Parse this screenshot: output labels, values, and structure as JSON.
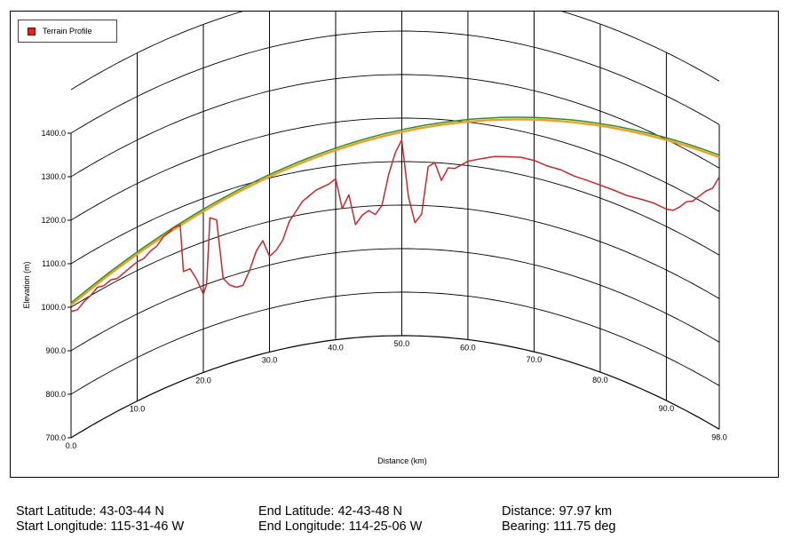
{
  "chart_data": {
    "type": "line",
    "legend": {
      "entries": [
        {
          "label": "Terrain Profile",
          "color": "#e2231a"
        }
      ],
      "placement": "top-left"
    },
    "xlabel": "Distance (km)",
    "ylabel": "Elevation (m)",
    "xlim": [
      0,
      98
    ],
    "ylim": [
      700,
      1400
    ],
    "x_ticks": [
      "0.0",
      "10.0",
      "20.0",
      "30.0",
      "40.0",
      "50.0",
      "60.0",
      "70.0",
      "80.0",
      "90.0",
      "98.0"
    ],
    "y_ticks": [
      "700.0",
      "800.0",
      "900.0",
      "1000.0",
      "1100.0",
      "1200.0",
      "1300.0",
      "1400.0"
    ],
    "grid": true,
    "projection": "curved earth",
    "series": [
      {
        "name": "Terrain Profile",
        "color": "#c8282a",
        "x": [
          0,
          1,
          2,
          3,
          4,
          5,
          6,
          7,
          8,
          9,
          10,
          11,
          12,
          13,
          14,
          15,
          15.5,
          16,
          16.5,
          17,
          18,
          19,
          20,
          20.5,
          21,
          22,
          23,
          24,
          25,
          26,
          27,
          28,
          29,
          30,
          31,
          32,
          33,
          34,
          35,
          36,
          37,
          38,
          39,
          40,
          41,
          42,
          43,
          44,
          45,
          46,
          47,
          48,
          49,
          50,
          51,
          52,
          53,
          54,
          55,
          56,
          57,
          58,
          59,
          60,
          62,
          64,
          66,
          68,
          70,
          72,
          74,
          76,
          78,
          80,
          82,
          84,
          86,
          88,
          90,
          91,
          92,
          93,
          94,
          95,
          96,
          97,
          98
        ],
        "y": [
          990,
          985,
          995,
          1000,
          1010,
          1005,
          1010,
          1005,
          1010,
          1015,
          1020,
          1020,
          1030,
          1035,
          1050,
          1055,
          1060,
          1060,
          1060,
          950,
          950,
          920,
          880,
          900,
          1050,
          1040,
          900,
          880,
          870,
          870,
          900,
          940,
          960,
          920,
          930,
          950,
          990,
          1010,
          1030,
          1040,
          1050,
          1055,
          1060,
          1070,
          1000,
          1030,
          960,
          980,
          990,
          980,
          1000,
          1070,
          1120,
          1150,
          1020,
          960,
          980,
          1090,
          1100,
          1060,
          1090,
          1090,
          1100,
          1110,
          1120,
          1130,
          1135,
          1140,
          1140,
          1135,
          1135,
          1130,
          1130,
          1130,
          1130,
          1130,
          1135,
          1140,
          1140,
          1145,
          1160,
          1180,
          1190,
          1210,
          1230,
          1245,
          1280
        ]
      },
      {
        "name": "",
        "color": "#2e8b2e",
        "x": [
          0,
          98
        ],
        "y": [
          1010,
          1330
        ]
      },
      {
        "name": "",
        "color": "#f0a020",
        "x": [
          0,
          98
        ],
        "y": [
          1005,
          1325
        ]
      }
    ]
  },
  "info": {
    "start_latitude": "Start Latitude: 43-03-44 N",
    "start_longitude": "Start Longitude: 115-31-46 W",
    "end_latitude": "End Latitude: 42-43-48 N",
    "end_longitude": "End Longitude: 114-25-06 W",
    "distance": "Distance: 97.97 km",
    "bearing": "Bearing: 111.75 deg"
  }
}
